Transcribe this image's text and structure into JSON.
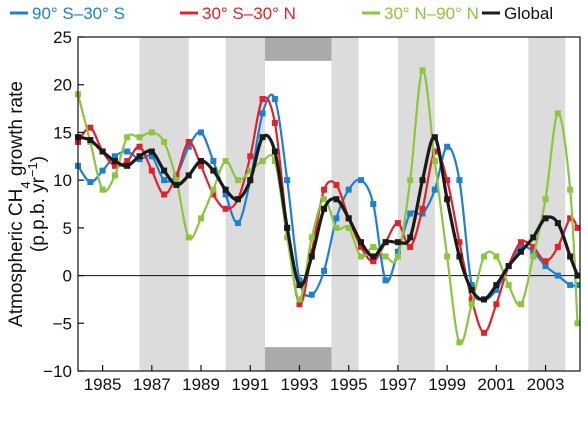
{
  "chart_data": {
    "type": "line",
    "ylabel_lines": [
      {
        "segments": [
          {
            "t": "Atmospheric CH"
          },
          {
            "t": "4",
            "sub": true
          },
          {
            "t": " growth rate"
          }
        ]
      },
      {
        "segments": [
          {
            "t": "(p.p.b. yr"
          },
          {
            "t": "−1",
            "sup": true
          },
          {
            "t": ")"
          }
        ]
      }
    ],
    "xlabel": "",
    "xlim": [
      1984.0,
      2004.4
    ],
    "ylim": [
      -10,
      25
    ],
    "yticks": [
      -10,
      -5,
      0,
      5,
      10,
      15,
      20,
      25
    ],
    "xticks": [
      1985,
      1987,
      1989,
      1991,
      1993,
      1995,
      1997,
      1999,
      2001,
      2003
    ],
    "xtick_labels": [
      "1985",
      "1987",
      "1989",
      "1991",
      "1993",
      "1995",
      "1997",
      "1999",
      "2001",
      "2003"
    ],
    "zero_line": true,
    "shaded_periods": [
      [
        1986.5,
        1988.5
      ],
      [
        1990.0,
        1991.6
      ],
      [
        1994.3,
        1995.4
      ],
      [
        1997.0,
        1998.5
      ],
      [
        2002.3,
        2003.8
      ]
    ],
    "dark_bars": {
      "x": [
        1991.6,
        1994.3
      ],
      "top_band": [
        22.5,
        25
      ],
      "bottom_band": [
        -10,
        -7.5
      ]
    },
    "legend_position": "top",
    "series": [
      {
        "name": "90° S–30° S",
        "color": "#1f7fd0",
        "x": [
          1984,
          1984.5,
          1985,
          1985.5,
          1986,
          1986.5,
          1987,
          1987.5,
          1988,
          1988.5,
          1989,
          1989.5,
          1990,
          1990.5,
          1991,
          1991.5,
          1992,
          1992.5,
          1993,
          1993.5,
          1994,
          1994.5,
          1995,
          1995.5,
          1996,
          1996.5,
          1997,
          1997.5,
          1998,
          1998.5,
          1999,
          1999.5,
          2000,
          2000.5,
          2001,
          2001.5,
          2002,
          2002.5,
          2003,
          2003.5,
          2004,
          2004.3
        ],
        "y": [
          11.5,
          9.8,
          11.0,
          12.5,
          13.0,
          12.2,
          12.5,
          10.0,
          10.5,
          13.5,
          15.0,
          12.0,
          8.5,
          5.5,
          10.0,
          17.0,
          18.5,
          10.0,
          -0.5,
          -2.0,
          0.5,
          6.0,
          9.0,
          10.0,
          7.5,
          -0.5,
          2.5,
          6.5,
          6.5,
          9.0,
          13.5,
          10.0,
          -1.0,
          -2.5,
          -1.5,
          1.0,
          3.0,
          2.5,
          1.0,
          0.0,
          -1.0,
          -1.0
        ]
      },
      {
        "name": "30° S–30° N",
        "color": "#e0232a",
        "x": [
          1984,
          1984.5,
          1985,
          1985.5,
          1986,
          1986.5,
          1987,
          1987.5,
          1988,
          1988.5,
          1989,
          1989.5,
          1990,
          1990.5,
          1991,
          1991.5,
          1992,
          1992.5,
          1993,
          1993.5,
          1994,
          1994.5,
          1995,
          1995.5,
          1996,
          1996.5,
          1997,
          1997.5,
          1998,
          1998.5,
          1999,
          1999.5,
          2000,
          2000.5,
          2001,
          2001.5,
          2002,
          2002.5,
          2003,
          2003.5,
          2004,
          2004.3
        ],
        "y": [
          14.0,
          15.5,
          13.0,
          11.5,
          12.0,
          13.5,
          11.0,
          8.5,
          10.5,
          14.0,
          11.5,
          8.5,
          7.0,
          8.0,
          12.5,
          18.5,
          16.0,
          5.0,
          -3.0,
          2.5,
          9.0,
          9.5,
          6.0,
          3.0,
          1.5,
          3.5,
          5.5,
          3.0,
          7.0,
          13.0,
          10.0,
          3.5,
          -2.5,
          -6.0,
          -3.0,
          1.0,
          3.5,
          3.0,
          1.5,
          3.0,
          6.0,
          5.0
        ]
      },
      {
        "name": "30° N–90° N",
        "color": "#8cc63f",
        "x": [
          1984,
          1984.5,
          1985,
          1985.5,
          1986,
          1986.5,
          1987,
          1987.5,
          1988,
          1988.5,
          1989,
          1989.5,
          1990,
          1990.5,
          1991,
          1991.5,
          1992,
          1992.5,
          1993,
          1993.5,
          1994,
          1994.5,
          1995,
          1995.5,
          1996,
          1996.5,
          1997,
          1997.5,
          1998,
          1998.5,
          1999,
          1999.5,
          2000,
          2000.5,
          2001,
          2001.5,
          2002,
          2002.5,
          2003,
          2003.5,
          2004,
          2004.3
        ],
        "y": [
          19.0,
          14.0,
          9.0,
          10.5,
          14.5,
          14.5,
          15.0,
          14.0,
          10.0,
          4.0,
          6.0,
          9.0,
          12.0,
          10.0,
          11.0,
          12.0,
          12.0,
          4.0,
          -2.5,
          4.0,
          8.0,
          5.0,
          5.0,
          2.0,
          3.0,
          2.0,
          2.0,
          10.0,
          21.5,
          12.0,
          2.0,
          -7.0,
          -3.0,
          2.0,
          2.0,
          -1.0,
          -3.0,
          2.0,
          8.0,
          17.0,
          9.0,
          -5.0
        ]
      },
      {
        "name": "Global",
        "color": "#1a1a1a",
        "x": [
          1984,
          1984.5,
          1985,
          1985.5,
          1986,
          1986.5,
          1987,
          1987.5,
          1988,
          1988.5,
          1989,
          1989.5,
          1990,
          1990.5,
          1991,
          1991.5,
          1992,
          1992.5,
          1993,
          1993.5,
          1994,
          1994.5,
          1995,
          1995.5,
          1996,
          1996.5,
          1997,
          1997.5,
          1998,
          1998.5,
          1999,
          1999.5,
          2000,
          2000.5,
          2001,
          2001.5,
          2002,
          2002.5,
          2003,
          2003.5,
          2004,
          2004.3
        ],
        "y": [
          14.5,
          14.2,
          13.0,
          12.0,
          11.5,
          12.5,
          13.0,
          11.0,
          9.5,
          10.5,
          12.0,
          11.0,
          9.0,
          8.0,
          10.0,
          14.5,
          13.0,
          5.0,
          -1.0,
          2.0,
          7.0,
          8.0,
          6.0,
          3.5,
          2.0,
          3.5,
          3.5,
          4.0,
          10.0,
          14.5,
          8.0,
          2.0,
          -1.5,
          -2.5,
          -1.0,
          1.0,
          2.5,
          4.0,
          6.0,
          5.5,
          2.0,
          0.0
        ]
      }
    ]
  }
}
